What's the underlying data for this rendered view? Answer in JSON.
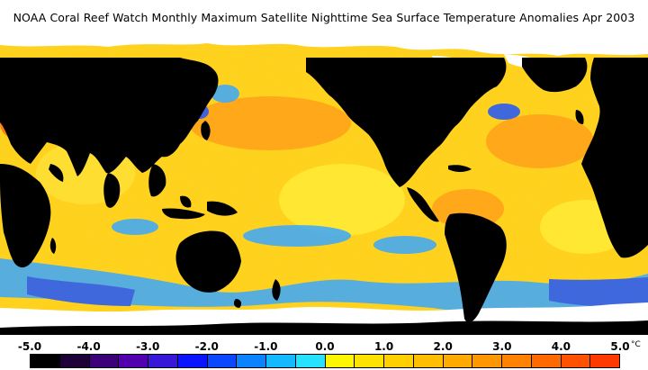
{
  "title": "NOAA Coral Reef Watch Monthly Maximum Satellite Nighttime Sea Surface Temperature Anomalies    Apr 2003",
  "colors": {
    "land": "#000000",
    "ice": "#ffffff",
    "ocean_warm": "#ffd21c",
    "ocean_mild": "#ffef3a",
    "ocean_hot": "#ff9a18",
    "ocean_cool": "#3aa8ff",
    "ocean_cold": "#1f56ff"
  },
  "legend": {
    "ticks": [
      "-5.0",
      "-4.0",
      "-3.0",
      "-2.0",
      "-1.0",
      "0.0",
      "1.0",
      "2.0",
      "3.0",
      "4.0",
      "5.0"
    ],
    "unit": "°C",
    "swatches": [
      "#000000",
      "#1e0039",
      "#3c0078",
      "#5200ad",
      "#3818d8",
      "#0b14ff",
      "#0a47ff",
      "#0b83ff",
      "#14b9ff",
      "#26e2ff",
      "#fff700",
      "#ffe300",
      "#ffd000",
      "#ffbf00",
      "#ffaa00",
      "#ff9800",
      "#ff8200",
      "#ff6a00",
      "#ff5200",
      "#ff3a00"
    ]
  }
}
